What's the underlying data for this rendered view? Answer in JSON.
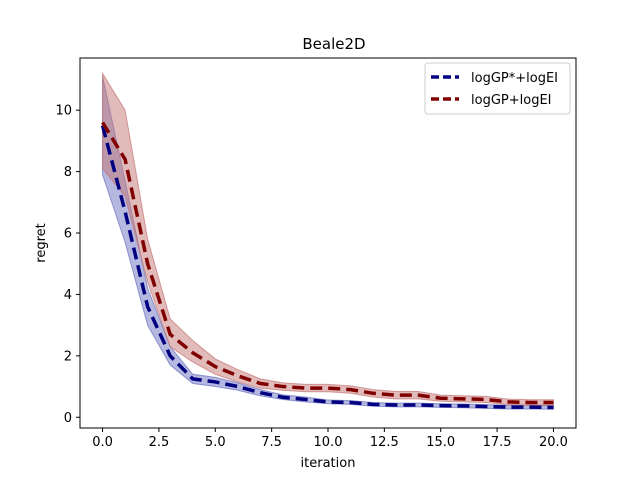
{
  "chart_data": {
    "type": "line",
    "title": "Beale2D",
    "xlabel": "iteration",
    "ylabel": "regret",
    "xlim": [
      -1,
      21
    ],
    "ylim": [
      -0.35,
      11.7
    ],
    "xticks": [
      0,
      2.5,
      5,
      7.5,
      10,
      12.5,
      15,
      17.5,
      20
    ],
    "xtick_labels": [
      "0.0",
      "2.5",
      "5.0",
      "7.5",
      "10.0",
      "12.5",
      "15.0",
      "17.5",
      "20.0"
    ],
    "yticks": [
      0,
      2,
      4,
      6,
      8,
      10
    ],
    "ytick_labels": [
      "0",
      "2",
      "4",
      "6",
      "8",
      "10"
    ],
    "grid": false,
    "legend_position": "top-right",
    "x": [
      0,
      1,
      2,
      3,
      4,
      5,
      6,
      7,
      8,
      9,
      10,
      11,
      12,
      13,
      14,
      15,
      16,
      17,
      18,
      19,
      20
    ],
    "series": [
      {
        "name": "logGP*+logEI",
        "color": "#000080",
        "band_color": "#6b72c0",
        "style": "dashed",
        "values": [
          9.5,
          6.7,
          3.6,
          2.0,
          1.25,
          1.15,
          1.0,
          0.8,
          0.65,
          0.58,
          0.5,
          0.48,
          0.42,
          0.4,
          0.4,
          0.38,
          0.37,
          0.35,
          0.33,
          0.33,
          0.32
        ],
        "lower": [
          7.9,
          5.7,
          3.0,
          1.7,
          1.1,
          1.0,
          0.88,
          0.7,
          0.58,
          0.5,
          0.44,
          0.42,
          0.36,
          0.34,
          0.34,
          0.32,
          0.31,
          0.29,
          0.27,
          0.27,
          0.26
        ],
        "upper": [
          11.1,
          7.7,
          4.2,
          2.3,
          1.4,
          1.3,
          1.12,
          0.9,
          0.73,
          0.66,
          0.56,
          0.54,
          0.48,
          0.46,
          0.46,
          0.44,
          0.43,
          0.41,
          0.39,
          0.39,
          0.38
        ]
      },
      {
        "name": "logGP+logEI",
        "color": "#800000",
        "band_color": "#c47575",
        "style": "dashed",
        "values": [
          9.6,
          8.4,
          5.0,
          2.7,
          2.1,
          1.65,
          1.35,
          1.1,
          1.0,
          0.95,
          0.95,
          0.9,
          0.78,
          0.72,
          0.72,
          0.62,
          0.6,
          0.58,
          0.5,
          0.48,
          0.48
        ],
        "lower": [
          8.1,
          7.2,
          4.4,
          2.3,
          1.8,
          1.4,
          1.15,
          0.95,
          0.88,
          0.83,
          0.83,
          0.78,
          0.66,
          0.6,
          0.6,
          0.52,
          0.5,
          0.48,
          0.41,
          0.39,
          0.39
        ],
        "upper": [
          11.2,
          10.0,
          5.8,
          3.2,
          2.5,
          1.9,
          1.55,
          1.25,
          1.12,
          1.07,
          1.07,
          1.02,
          0.9,
          0.84,
          0.84,
          0.72,
          0.7,
          0.68,
          0.59,
          0.57,
          0.57
        ]
      }
    ]
  }
}
